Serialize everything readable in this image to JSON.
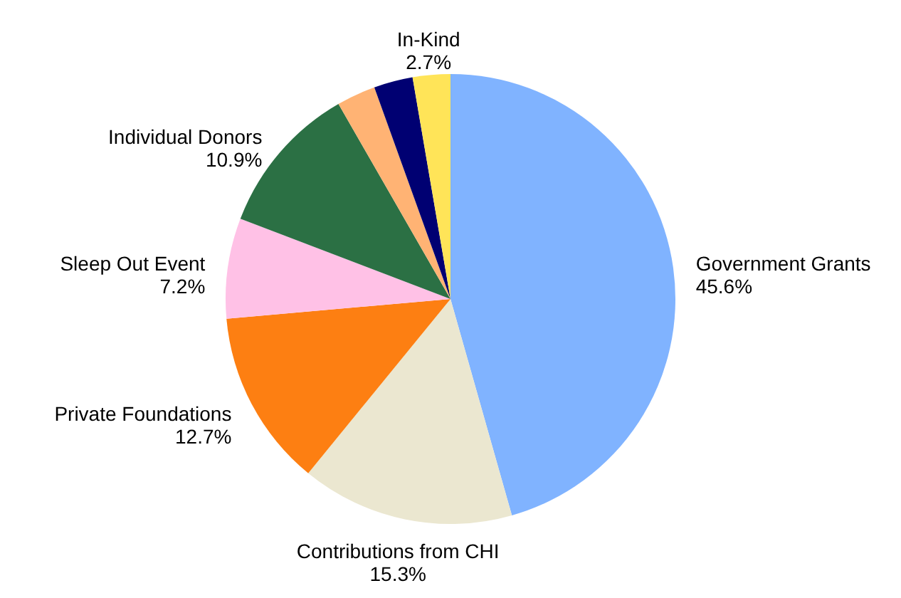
{
  "chart_data": {
    "type": "pie",
    "categories": [
      "Government Grants",
      "Contributions from CHI",
      "Private Foundations",
      "Sleep Out Event",
      "Individual Donors",
      null,
      null,
      "In-Kind"
    ],
    "values": [
      45.6,
      15.3,
      12.7,
      7.2,
      10.9,
      2.8,
      2.8,
      2.7
    ],
    "value_labels": [
      "45.6%",
      "15.3%",
      "12.7%",
      "7.2%",
      "10.9%",
      null,
      null,
      "2.7%"
    ],
    "colors": [
      "#80b3ff",
      "#ebe7d0",
      "#fd7f12",
      "#ffc1e6",
      "#2b7044",
      "#ffb374",
      "#000072",
      "#ffe458"
    ]
  }
}
